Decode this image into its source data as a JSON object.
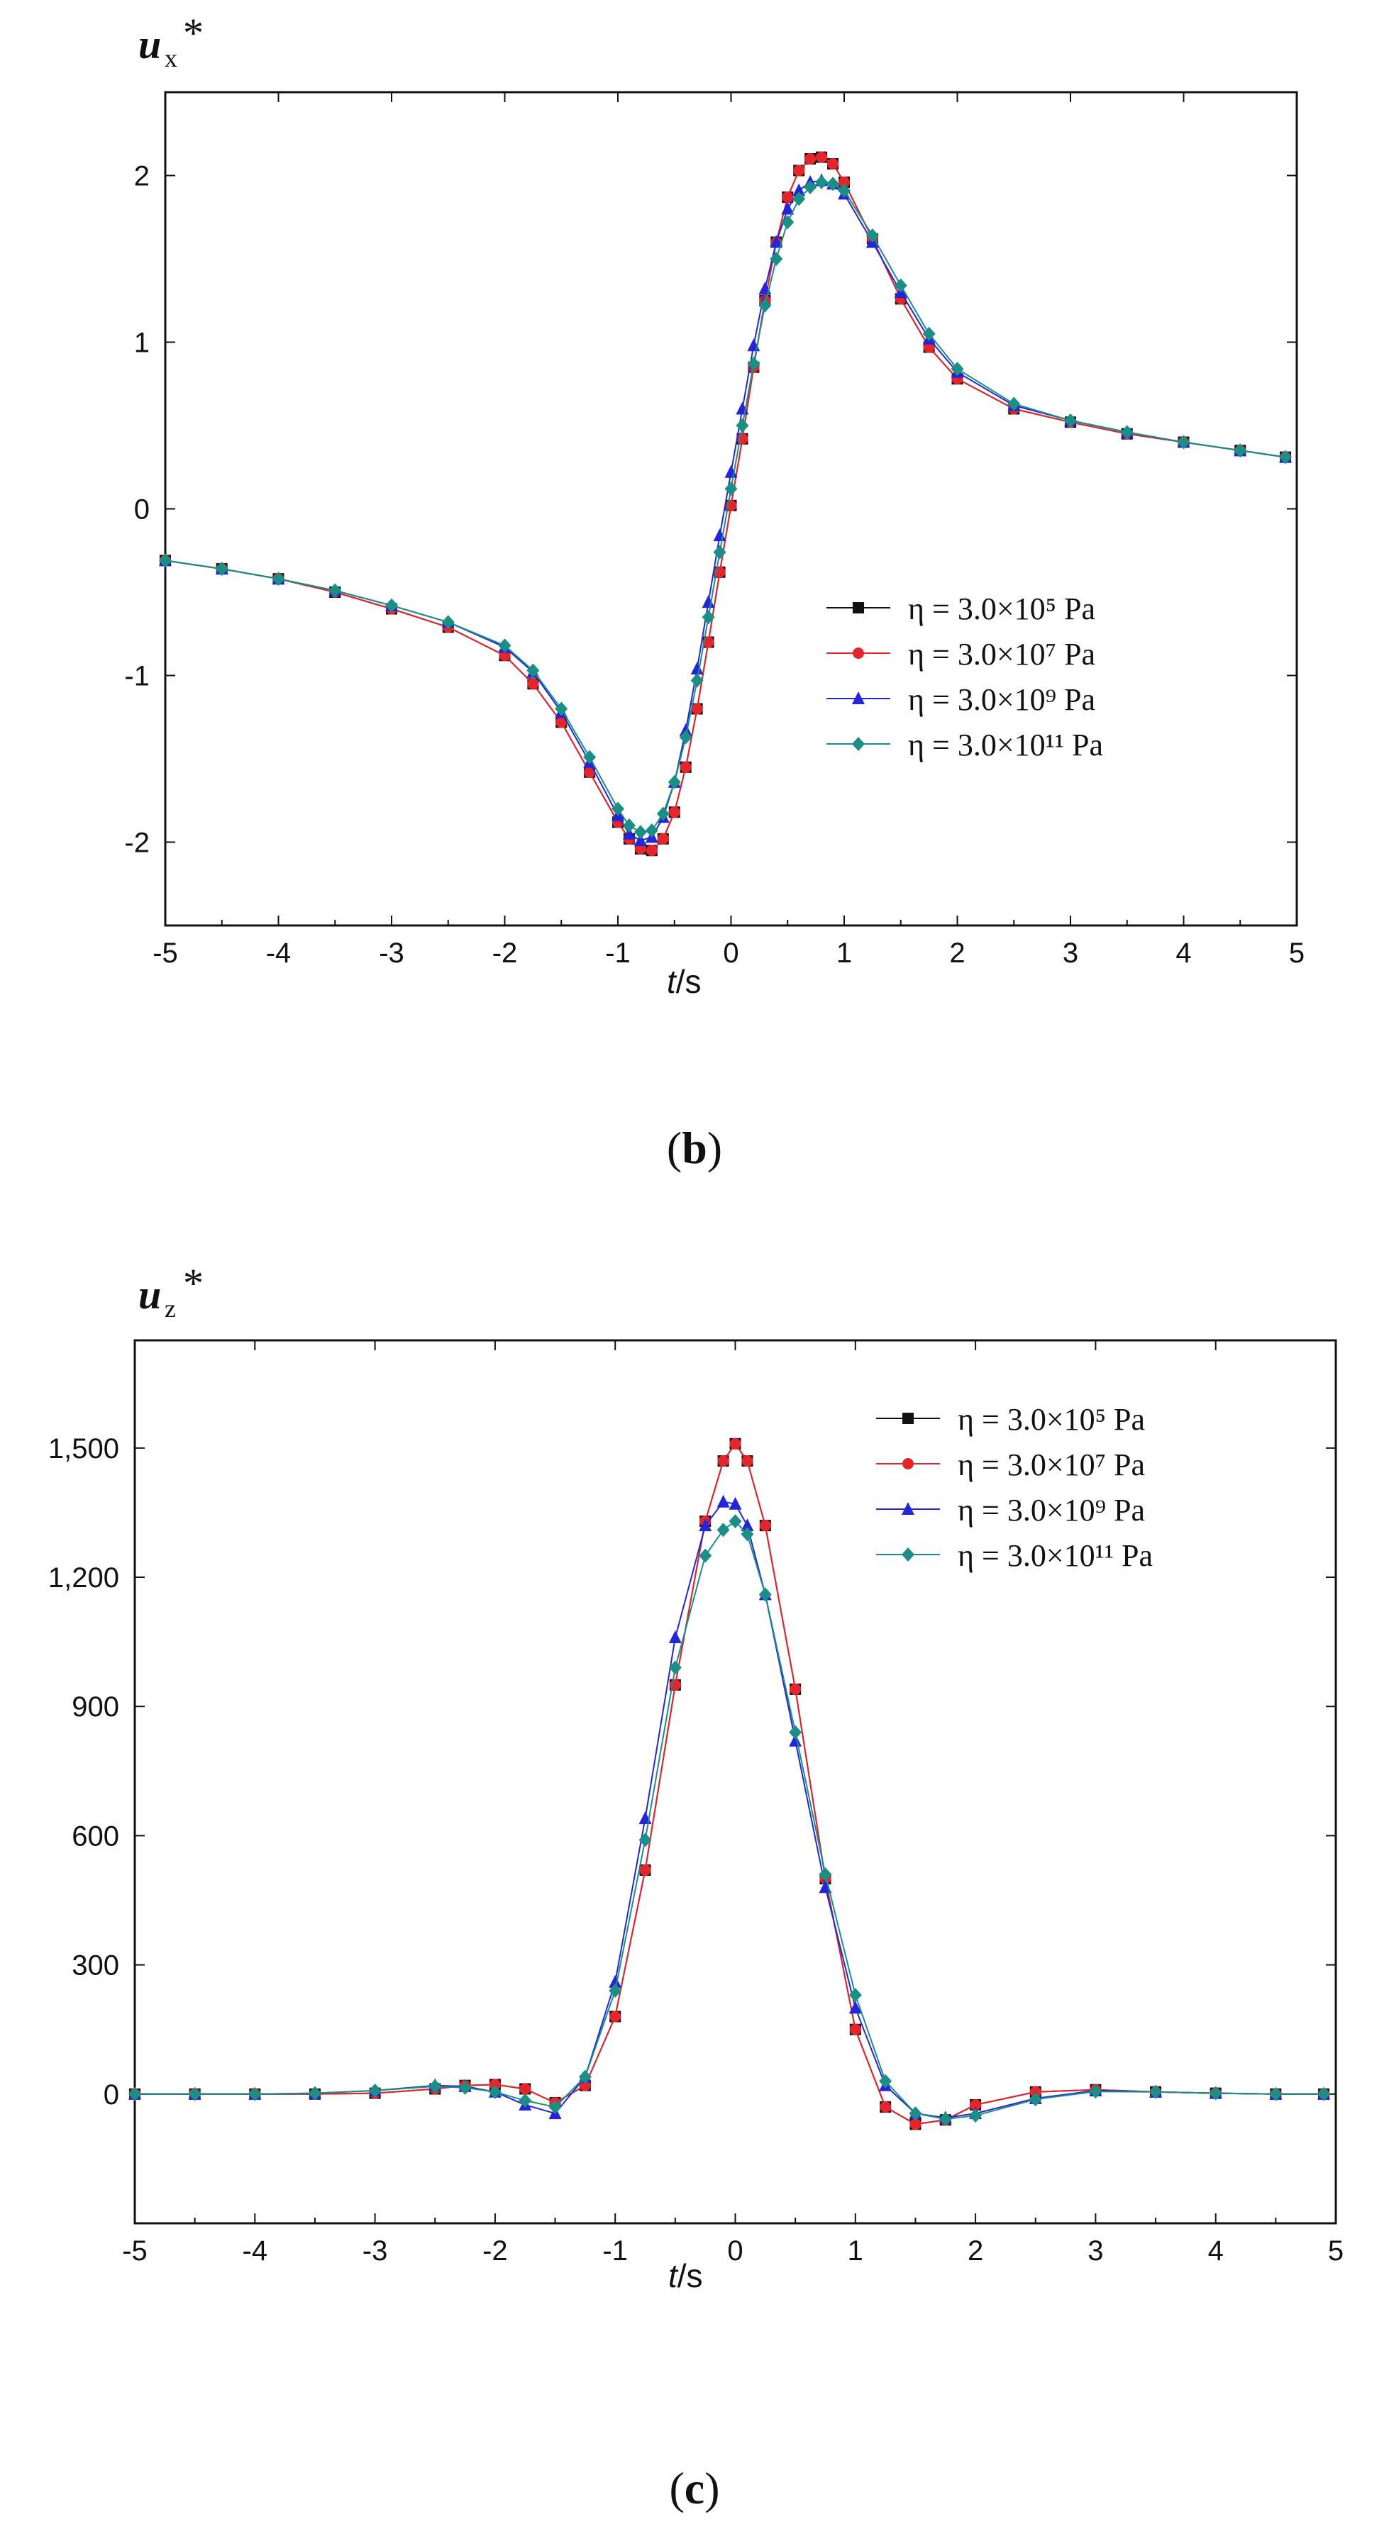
{
  "chart_data": [
    {
      "type": "line",
      "panel_label": "b",
      "ylabel_main": "u",
      "ylabel_sub": "x",
      "ylabel_sup": "*",
      "xlabel_main": "t",
      "xlabel_unit": "/s",
      "xlim": [
        -5,
        5
      ],
      "ylim": [
        -2.5,
        2.5
      ],
      "xticks": [
        -5,
        -4,
        -3,
        -2,
        -1,
        0,
        1,
        2,
        3,
        4,
        5
      ],
      "xtick_labels": [
        "-5",
        "-4",
        "-3",
        "-2",
        "-1",
        "0",
        "1",
        "2",
        "3",
        "4",
        "5"
      ],
      "yticks": [
        -2,
        -1,
        0,
        1,
        2
      ],
      "ytick_labels": [
        "-2",
        "-1",
        "0",
        "1",
        "2"
      ],
      "grid": false,
      "legend_position": "center-right",
      "x": [
        -5.0,
        -4.5,
        -4.0,
        -3.5,
        -3.0,
        -2.5,
        -2.0,
        -1.75,
        -1.5,
        -1.25,
        -1.0,
        -0.9,
        -0.8,
        -0.7,
        -0.6,
        -0.5,
        -0.4,
        -0.3,
        -0.2,
        -0.1,
        0.0,
        0.1,
        0.2,
        0.3,
        0.4,
        0.5,
        0.6,
        0.7,
        0.8,
        0.9,
        1.0,
        1.25,
        1.5,
        1.75,
        2.0,
        2.5,
        3.0,
        3.5,
        4.0,
        4.5,
        4.9
      ],
      "series": [
        {
          "name": "η = 3.0×10⁵ Pa",
          "values": [
            -0.31,
            -0.36,
            -0.42,
            -0.5,
            -0.6,
            -0.71,
            -0.88,
            -1.05,
            -1.28,
            -1.58,
            -1.88,
            -1.98,
            -2.04,
            -2.05,
            -1.98,
            -1.82,
            -1.55,
            -1.2,
            -0.8,
            -0.38,
            0.02,
            0.42,
            0.85,
            1.25,
            1.6,
            1.87,
            2.03,
            2.1,
            2.11,
            2.07,
            1.96,
            1.62,
            1.26,
            0.97,
            0.78,
            0.6,
            0.52,
            0.45,
            0.4,
            0.35,
            0.31
          ]
        },
        {
          "name": "η = 3.0×10⁷ Pa",
          "values": [
            -0.31,
            -0.36,
            -0.42,
            -0.5,
            -0.6,
            -0.71,
            -0.88,
            -1.05,
            -1.28,
            -1.58,
            -1.88,
            -1.98,
            -2.04,
            -2.05,
            -1.98,
            -1.82,
            -1.55,
            -1.2,
            -0.8,
            -0.38,
            0.02,
            0.42,
            0.85,
            1.25,
            1.6,
            1.87,
            2.03,
            2.1,
            2.11,
            2.07,
            1.96,
            1.62,
            1.26,
            0.97,
            0.78,
            0.6,
            0.52,
            0.45,
            0.4,
            0.35,
            0.31
          ]
        },
        {
          "name": "η = 3.0×10⁹ Pa",
          "values": [
            -0.31,
            -0.36,
            -0.42,
            -0.49,
            -0.58,
            -0.68,
            -0.83,
            -0.98,
            -1.22,
            -1.52,
            -1.84,
            -1.95,
            -1.99,
            -1.97,
            -1.85,
            -1.64,
            -1.33,
            -0.96,
            -0.56,
            -0.16,
            0.22,
            0.6,
            0.98,
            1.32,
            1.6,
            1.8,
            1.91,
            1.96,
            1.97,
            1.95,
            1.89,
            1.6,
            1.3,
            1.02,
            0.82,
            0.62,
            0.53,
            0.46,
            0.4,
            0.35,
            0.31
          ]
        },
        {
          "name": "η = 3.0×10¹¹ Pa",
          "values": [
            -0.31,
            -0.36,
            -0.42,
            -0.49,
            -0.58,
            -0.68,
            -0.82,
            -0.97,
            -1.2,
            -1.49,
            -1.8,
            -1.9,
            -1.94,
            -1.93,
            -1.83,
            -1.64,
            -1.37,
            -1.03,
            -0.65,
            -0.26,
            0.12,
            0.5,
            0.87,
            1.22,
            1.5,
            1.72,
            1.86,
            1.93,
            1.96,
            1.95,
            1.91,
            1.64,
            1.34,
            1.05,
            0.84,
            0.63,
            0.53,
            0.46,
            0.4,
            0.35,
            0.31
          ]
        }
      ]
    },
    {
      "type": "line",
      "panel_label": "c",
      "ylabel_main": "u",
      "ylabel_sub": "z",
      "ylabel_sup": "*",
      "xlabel_main": "t",
      "xlabel_unit": "/s",
      "xlim": [
        -5,
        5
      ],
      "ylim": [
        -300,
        1750
      ],
      "xticks": [
        -5,
        -4,
        -3,
        -2,
        -1,
        0,
        1,
        2,
        3,
        4,
        5
      ],
      "xtick_labels": [
        "-5",
        "-4",
        "-3",
        "-2",
        "-1",
        "0",
        "1",
        "2",
        "3",
        "4",
        "5"
      ],
      "yticks": [
        0,
        300,
        600,
        900,
        1200,
        1500
      ],
      "ytick_labels": [
        "0",
        "300",
        "600",
        "900",
        "1,200",
        "1,500"
      ],
      "grid": false,
      "legend_position": "top-right",
      "x": [
        -5.0,
        -4.5,
        -4.0,
        -3.5,
        -3.0,
        -2.5,
        -2.25,
        -2.0,
        -1.75,
        -1.5,
        -1.25,
        -1.0,
        -0.75,
        -0.5,
        -0.25,
        -0.1,
        0.0,
        0.1,
        0.25,
        0.5,
        0.75,
        1.0,
        1.25,
        1.5,
        1.75,
        2.0,
        2.5,
        3.0,
        3.5,
        4.0,
        4.5,
        4.9
      ],
      "series": [
        {
          "name": "η = 3.0×10⁵ Pa",
          "values": [
            0,
            0,
            0,
            0,
            2,
            12,
            20,
            22,
            12,
            -20,
            20,
            180,
            520,
            950,
            1330,
            1470,
            1510,
            1470,
            1320,
            940,
            500,
            150,
            -30,
            -70,
            -60,
            -25,
            5,
            10,
            5,
            2,
            0,
            0
          ]
        },
        {
          "name": "η = 3.0×10⁷ Pa",
          "values": [
            0,
            0,
            0,
            0,
            2,
            12,
            20,
            22,
            12,
            -20,
            20,
            180,
            520,
            950,
            1330,
            1470,
            1510,
            1470,
            1320,
            940,
            500,
            150,
            -30,
            -70,
            -60,
            -25,
            5,
            10,
            5,
            2,
            0,
            0
          ]
        },
        {
          "name": "η = 3.0×10⁹ Pa",
          "values": [
            0,
            0,
            0,
            2,
            8,
            20,
            18,
            5,
            -25,
            -45,
            40,
            260,
            640,
            1060,
            1320,
            1375,
            1370,
            1320,
            1160,
            820,
            480,
            200,
            20,
            -45,
            -55,
            -45,
            -10,
            8,
            5,
            2,
            0,
            0
          ]
        },
        {
          "name": "η = 3.0×10¹¹ Pa",
          "values": [
            0,
            0,
            0,
            2,
            8,
            18,
            15,
            5,
            -15,
            -30,
            40,
            240,
            590,
            990,
            1250,
            1310,
            1330,
            1300,
            1160,
            840,
            510,
            230,
            30,
            -45,
            -58,
            -50,
            -12,
            6,
            5,
            2,
            0,
            0
          ]
        }
      ]
    }
  ],
  "colors": [
    "#111111",
    "#e4252c",
    "#2525d8",
    "#1b8e86"
  ],
  "marker_shapes": [
    "square",
    "circle",
    "triangle",
    "diamond"
  ]
}
